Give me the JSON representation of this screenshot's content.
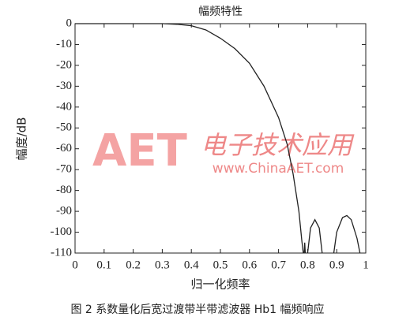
{
  "chart_data": {
    "type": "line",
    "title": "幅频特性",
    "x_label": "归一化频率",
    "y_label": "幅度/dB",
    "caption": "图 2 系数量化后宽过渡带半带滤波器 Hb1 幅频响应",
    "watermark": {
      "logo": "AET",
      "name": "电子技术应用",
      "site": "www.ChinaAET.com"
    },
    "xlim": [
      0,
      1
    ],
    "xticks": [
      0,
      0.1,
      0.2,
      0.3,
      0.4,
      0.5,
      0.6,
      0.7,
      0.8,
      0.9,
      1
    ],
    "ylim": [
      -110,
      0
    ],
    "yticks": [
      0,
      -10,
      -20,
      -30,
      -40,
      -50,
      -60,
      -70,
      -80,
      -90,
      -100,
      -110
    ],
    "grid": false,
    "series": [
      {
        "name": "幅频特性",
        "color": "#222222",
        "x": [
          0,
          0.1,
          0.2,
          0.3,
          0.35,
          0.4,
          0.45,
          0.5,
          0.55,
          0.6,
          0.65,
          0.7,
          0.73,
          0.75,
          0.77,
          0.78,
          0.785,
          0.786,
          0.788,
          0.79,
          0.792,
          0.796,
          0.8,
          0.81,
          0.825,
          0.84,
          0.85,
          0.87,
          0.89,
          0.9,
          0.92,
          0.935,
          0.95,
          0.97,
          0.98
        ],
        "values": [
          0,
          0,
          0,
          0,
          -0.3,
          -1,
          -3,
          -7,
          -12,
          -19,
          -30,
          -45,
          -58,
          -72,
          -90,
          -104,
          -110,
          null,
          -110,
          -105,
          -110,
          null,
          -110,
          -98,
          -94,
          -98,
          -110,
          null,
          -110,
          -100,
          -93,
          -92,
          -94,
          -103,
          -110
        ]
      }
    ]
  }
}
